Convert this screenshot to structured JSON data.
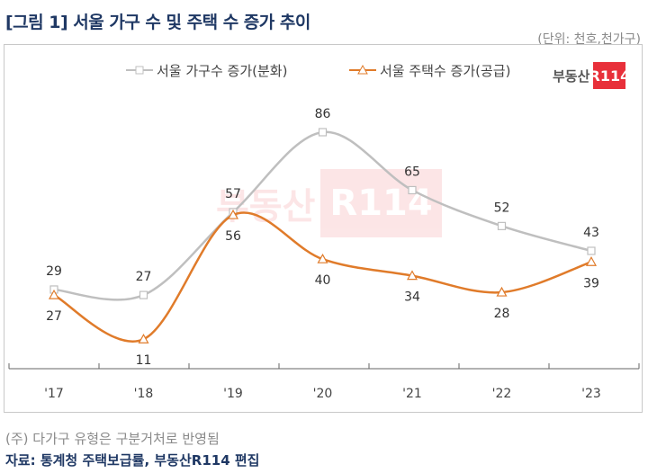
{
  "title": "[그림 1] 서울 가구 수 및 주택 수 증가 추이",
  "unit": "(단위: 천호,천가구)",
  "logo": {
    "text": "부동산",
    "badge": "R114"
  },
  "note": "(주) 다가구 유형은 구분거처로 반영됨",
  "source": "자료: 통계청 주택보급률, 부동산R114 편집",
  "chart_data": {
    "type": "line",
    "categories": [
      "'17",
      "'18",
      "'19",
      "'20",
      "'21",
      "'22",
      "'23"
    ],
    "series": [
      {
        "name": "서울 가구수 증가(분화)",
        "values": [
          29,
          27,
          57,
          86,
          65,
          52,
          43
        ],
        "color": "#bfbfbf",
        "marker": "square",
        "label_pos": "above"
      },
      {
        "name": "서울 주택수 증가(공급)",
        "values": [
          27,
          11,
          56,
          40,
          34,
          28,
          39
        ],
        "color": "#e07b2a",
        "marker": "triangle",
        "label_pos": "below"
      }
    ],
    "ylim": [
      0,
      100
    ],
    "legend": "top-center",
    "grid": false
  }
}
